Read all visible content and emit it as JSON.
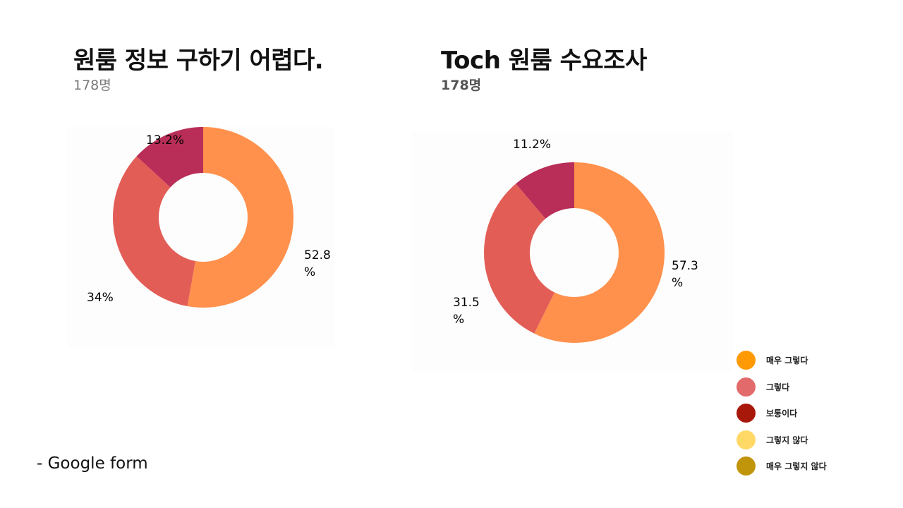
{
  "charts": [
    {
      "title": "원룸 정보 구하기 어렵다.",
      "respondents": "178명"
    },
    {
      "title": "Toch 원룸 수요조사",
      "respondents": "178명"
    }
  ],
  "chart_data": [
    {
      "type": "pie",
      "title": "원룸 정보 구하기 어렵다.",
      "subtitle": "178명",
      "categories": [
        "매우 그렇다",
        "그렇다",
        "보통이다"
      ],
      "values": [
        52.8,
        34,
        13.2
      ],
      "labels": [
        "52.8 %",
        "34%",
        "13.2%"
      ],
      "colors": [
        "#FF914D",
        "#E35D57",
        "#B82E58"
      ],
      "donut": true
    },
    {
      "type": "pie",
      "title": "Toch 원룸 수요조사",
      "subtitle": "178명",
      "categories": [
        "매우 그렇다",
        "그렇다",
        "보통이다"
      ],
      "values": [
        57.3,
        31.5,
        11.2
      ],
      "labels": [
        "57.3 %",
        "31.5 %",
        "11.2%"
      ],
      "colors": [
        "#FF914D",
        "#E35D57",
        "#B82E58"
      ],
      "donut": true
    }
  ],
  "legend": [
    {
      "label": "매우 그렇다",
      "color": "#FF9A05"
    },
    {
      "label": "그렇다",
      "color": "#E36A6A"
    },
    {
      "label": "보통이다",
      "color": "#A8180A"
    },
    {
      "label": "그렇지 않다",
      "color": "#FFD866"
    },
    {
      "label": "매우 그렇지 않다",
      "color": "#C1950B"
    }
  ],
  "footnote": "- Google form"
}
